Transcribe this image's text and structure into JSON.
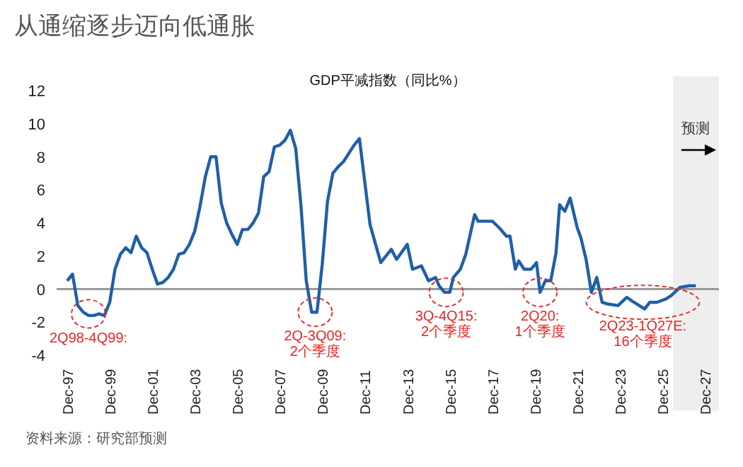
{
  "chart_data": {
    "type": "line",
    "title": "从通缩逐步迈向低通胀",
    "subtitle": "GDP平减指数（同比%）",
    "x": [
      "1997-12",
      "1998-03",
      "1998-06",
      "1998-09",
      "1998-12",
      "1999-03",
      "1999-06",
      "1999-09",
      "1999-12",
      "2000-03",
      "2000-06",
      "2000-09",
      "2000-12",
      "2001-03",
      "2001-06",
      "2001-09",
      "2001-12",
      "2002-03",
      "2002-06",
      "2002-09",
      "2002-12",
      "2003-03",
      "2003-06",
      "2003-09",
      "2003-12",
      "2004-03",
      "2004-06",
      "2004-09",
      "2004-12",
      "2005-03",
      "2005-06",
      "2005-09",
      "2005-12",
      "2006-03",
      "2006-06",
      "2006-09",
      "2006-12",
      "2007-03",
      "2007-06",
      "2007-09",
      "2007-12",
      "2008-03",
      "2008-06",
      "2008-09",
      "2008-12",
      "2009-03",
      "2009-06",
      "2009-09",
      "2009-12",
      "2010-03",
      "2010-06",
      "2010-09",
      "2010-12",
      "2011-03",
      "2011-06",
      "2011-09",
      "2012-03",
      "2012-09",
      "2013-03",
      "2013-06",
      "2013-12",
      "2014-03",
      "2014-08",
      "2014-12",
      "2015-04",
      "2015-06",
      "2015-09",
      "2015-12",
      "2016-02",
      "2016-06",
      "2016-09",
      "2017-02",
      "2017-04",
      "2017-08",
      "2017-12",
      "2018-04",
      "2018-08",
      "2018-10",
      "2019-01",
      "2019-03",
      "2019-06",
      "2019-10",
      "2020-01",
      "2020-03",
      "2020-06",
      "2020-09",
      "2020-12",
      "2021-02",
      "2021-05",
      "2021-08",
      "2021-12",
      "2022-02",
      "2022-05",
      "2022-08",
      "2022-11",
      "2023-02",
      "2023-05",
      "2023-11",
      "2024-04",
      "2024-08",
      "2025-02",
      "2025-05",
      "2025-09",
      "2026-02",
      "2026-05",
      "2026-10",
      "2027-03",
      "2027-07"
    ],
    "series": [
      {
        "color": "#1f5fa8",
        "values": [
          0.5,
          0.9,
          -1.0,
          -1.4,
          -1.6,
          -1.6,
          -1.5,
          -1.6,
          -0.8,
          1.2,
          2.1,
          2.5,
          2.2,
          3.2,
          2.5,
          2.2,
          1.2,
          0.3,
          0.4,
          0.7,
          1.2,
          2.1,
          2.2,
          2.7,
          3.5,
          5.0,
          6.8,
          8.0,
          8.0,
          5.2,
          4.0,
          3.3,
          2.7,
          3.6,
          3.6,
          4.0,
          4.6,
          6.8,
          7.1,
          8.6,
          8.7,
          9.0,
          9.6,
          8.5,
          5.0,
          0.5,
          -1.4,
          -1.4,
          1.5,
          5.3,
          7.0,
          7.4,
          7.7,
          8.2,
          8.7,
          9.1,
          3.9,
          1.6,
          2.4,
          1.8,
          2.7,
          1.2,
          1.4,
          0.5,
          0.7,
          0.2,
          -0.2,
          -0.2,
          0.7,
          1.2,
          2.1,
          4.5,
          4.1,
          4.1,
          4.1,
          3.7,
          3.2,
          3.2,
          1.2,
          1.7,
          1.2,
          1.2,
          1.6,
          -0.2,
          0.5,
          0.5,
          2.2,
          5.1,
          4.7,
          5.5,
          3.7,
          3.1,
          1.8,
          -0.2,
          0.7,
          -0.8,
          -0.9,
          -1.0,
          -0.5,
          -0.8,
          -1.2,
          -0.8,
          -0.8,
          -0.6,
          -0.4,
          0.1,
          0.2,
          0.2
        ]
      }
    ],
    "xlim": [
      "1997-06",
      "2028-08"
    ],
    "xticks": [
      {
        "value": "1997-12",
        "label": "Dec-97"
      },
      {
        "value": "1999-12",
        "label": "Dec-99"
      },
      {
        "value": "2001-12",
        "label": "Dec-01"
      },
      {
        "value": "2003-12",
        "label": "Dec-03"
      },
      {
        "value": "2005-12",
        "label": "Dec-05"
      },
      {
        "value": "2007-12",
        "label": "Dec-07"
      },
      {
        "value": "2009-12",
        "label": "Dec-09"
      },
      {
        "value": "2011-12",
        "label": "Dec-11"
      },
      {
        "value": "2013-12",
        "label": "Dec-13"
      },
      {
        "value": "2015-12",
        "label": "Dec-15"
      },
      {
        "value": "2017-12",
        "label": "Dec-17"
      },
      {
        "value": "2019-12",
        "label": "Dec-19"
      },
      {
        "value": "2021-12",
        "label": "Dec-21"
      },
      {
        "value": "2023-12",
        "label": "Dec-23"
      },
      {
        "value": "2025-12",
        "label": "Dec-25"
      },
      {
        "value": "2027-12",
        "label": "Dec-27"
      }
    ],
    "ylim": [
      -4,
      12
    ],
    "yticks": [
      -4,
      -2,
      0,
      2,
      4,
      6,
      8,
      10,
      12
    ],
    "grid": false,
    "marker": "none",
    "line_style": "solid",
    "ref_lines": [
      {
        "axis": "y",
        "value": 0,
        "color": "#999999"
      }
    ],
    "bands": [
      {
        "axis": "x",
        "from": "2026-06",
        "to": "2028-08",
        "label": "预测",
        "color": "#eeeeee"
      }
    ],
    "annotations": [
      {
        "text": "2Q98-4Q99:",
        "x": "1998-12",
        "y": -1.5
      },
      {
        "text": "2Q-3Q09:\n2个季度",
        "x": "2009-08",
        "y": -1.4
      },
      {
        "text": "3Q-4Q15:\n2个季度",
        "x": "2015-10",
        "y": -0.2
      },
      {
        "text": "2Q20:\n1个季度",
        "x": "2020-03",
        "y": -0.2
      },
      {
        "text": "2Q23-1Q27E:\n16个季度",
        "x": "2025-01",
        "y": -0.8
      },
      "资料来源：研究部预测"
    ]
  }
}
